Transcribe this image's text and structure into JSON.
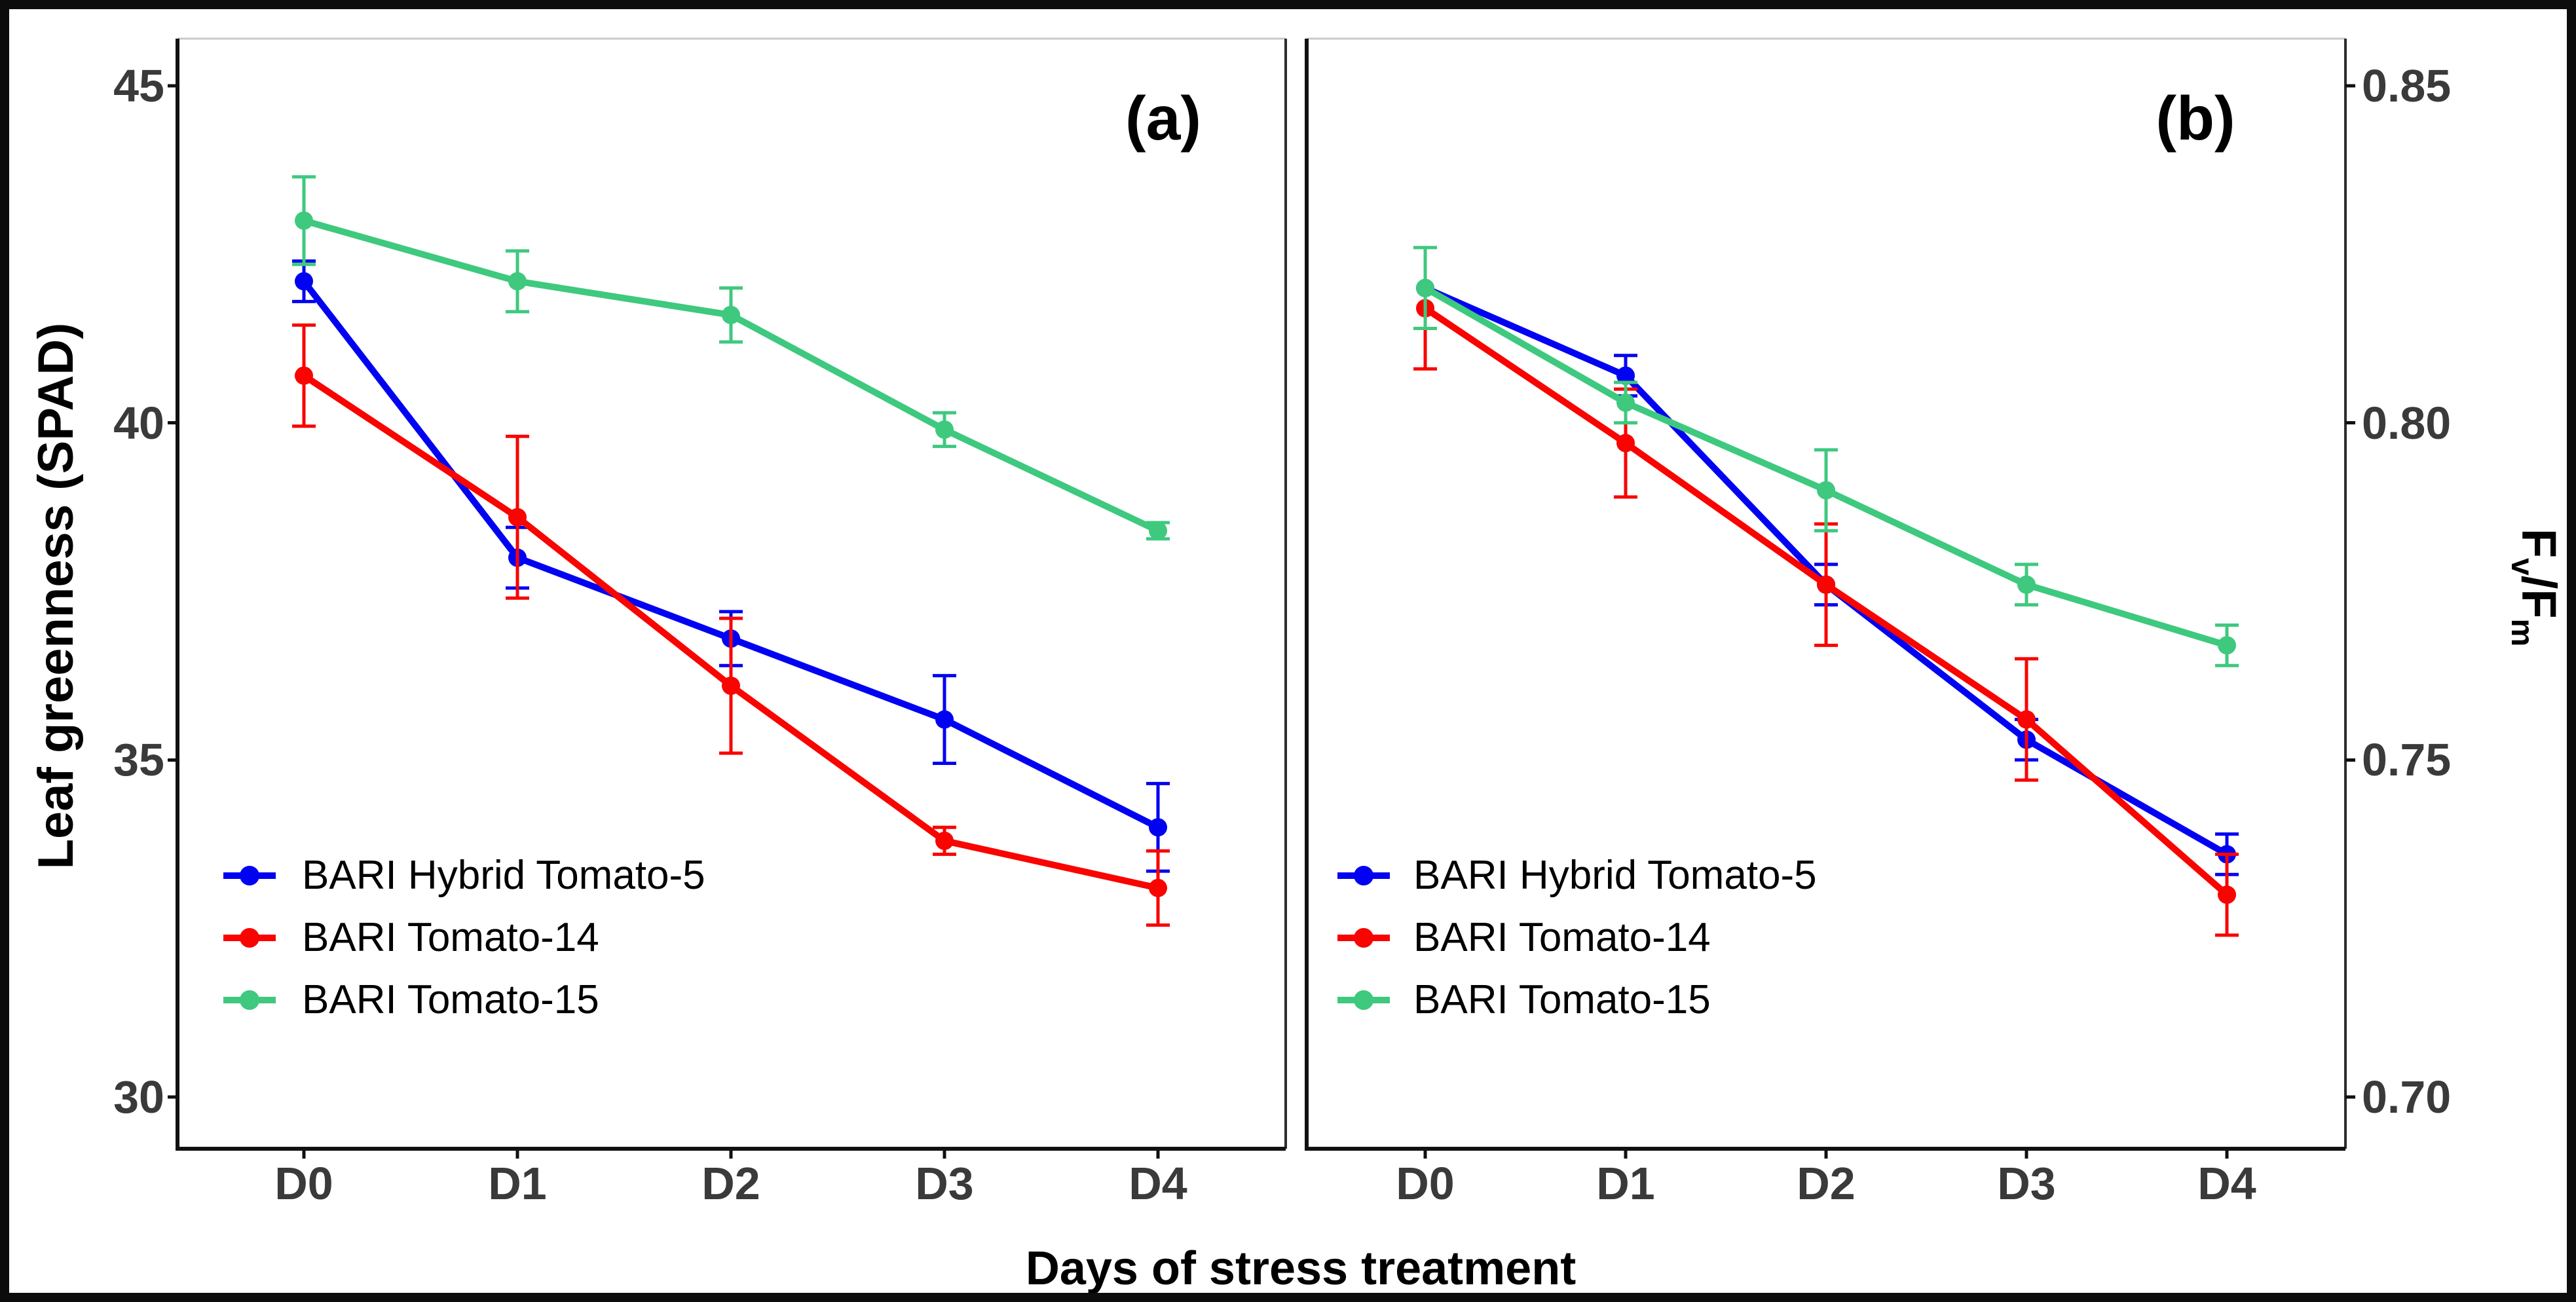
{
  "figure": {
    "x_title": "Days of stress treatment",
    "background": "#ffffff",
    "border_color": "#0c0c0c"
  },
  "chart_data": [
    {
      "type": "line",
      "panel_label": "(a)",
      "ylabel": "Leaf greenness (SPAD)",
      "xlabel": "Days of stress treatment",
      "categories": [
        "D0",
        "D1",
        "D2",
        "D3",
        "D4"
      ],
      "y_ticks": [
        45,
        40,
        35,
        30
      ],
      "y_tick_labels": [
        "45",
        "40",
        "35",
        "30"
      ],
      "ylim": [
        29.2,
        45.7
      ],
      "grid": false,
      "legend_position": "inside-bottom-left",
      "error_bars": true,
      "series": [
        {
          "name": "BARI Hybrid Tomato-5",
          "color": "#0202f2",
          "values": [
            42.1,
            38.0,
            36.8,
            35.6,
            34.0
          ],
          "errors": [
            0.3,
            0.45,
            0.4,
            0.65,
            0.65
          ]
        },
        {
          "name": "BARI Tomato-14",
          "color": "#f90400",
          "values": [
            40.7,
            38.6,
            36.1,
            33.8,
            33.1
          ],
          "errors": [
            0.75,
            1.2,
            1.0,
            0.2,
            0.55
          ]
        },
        {
          "name": "BARI Tomato-15",
          "color": "#3ec97e",
          "values": [
            43.0,
            42.1,
            41.6,
            39.9,
            38.4
          ],
          "errors": [
            0.65,
            0.45,
            0.4,
            0.25,
            0.12
          ]
        }
      ]
    },
    {
      "type": "line",
      "panel_label": "(b)",
      "ylabel": "Fv/Fm",
      "ylabel_parts": {
        "F1": "F",
        "v": "v",
        "slash": "/",
        "F2": "F",
        "m": "m"
      },
      "xlabel": "Days of stress treatment",
      "categories": [
        "D0",
        "D1",
        "D2",
        "D3",
        "D4"
      ],
      "y_ticks": [
        0.85,
        0.8,
        0.75,
        0.7
      ],
      "y_tick_labels": [
        "0.85",
        "0.80",
        "0.75",
        "0.70"
      ],
      "ylim": [
        0.692,
        0.857
      ],
      "grid": false,
      "legend_position": "inside-bottom-left",
      "error_bars": true,
      "series": [
        {
          "name": "BARI Hybrid Tomato-5",
          "color": "#0202f2",
          "values": [
            0.82,
            0.807,
            0.776,
            0.753,
            0.736
          ],
          "errors": [
            0,
            0.003,
            0.003,
            0.003,
            0.003
          ]
        },
        {
          "name": "BARI Tomato-14",
          "color": "#f90400",
          "values": [
            0.817,
            0.797,
            0.776,
            0.756,
            0.73
          ],
          "errors": [
            0.009,
            0.008,
            0.009,
            0.009,
            0.006
          ]
        },
        {
          "name": "BARI Tomato-15",
          "color": "#3ec97e",
          "values": [
            0.82,
            0.803,
            0.79,
            0.776,
            0.767
          ],
          "errors": [
            0.006,
            0.003,
            0.006,
            0.003,
            0.003
          ]
        }
      ]
    }
  ]
}
